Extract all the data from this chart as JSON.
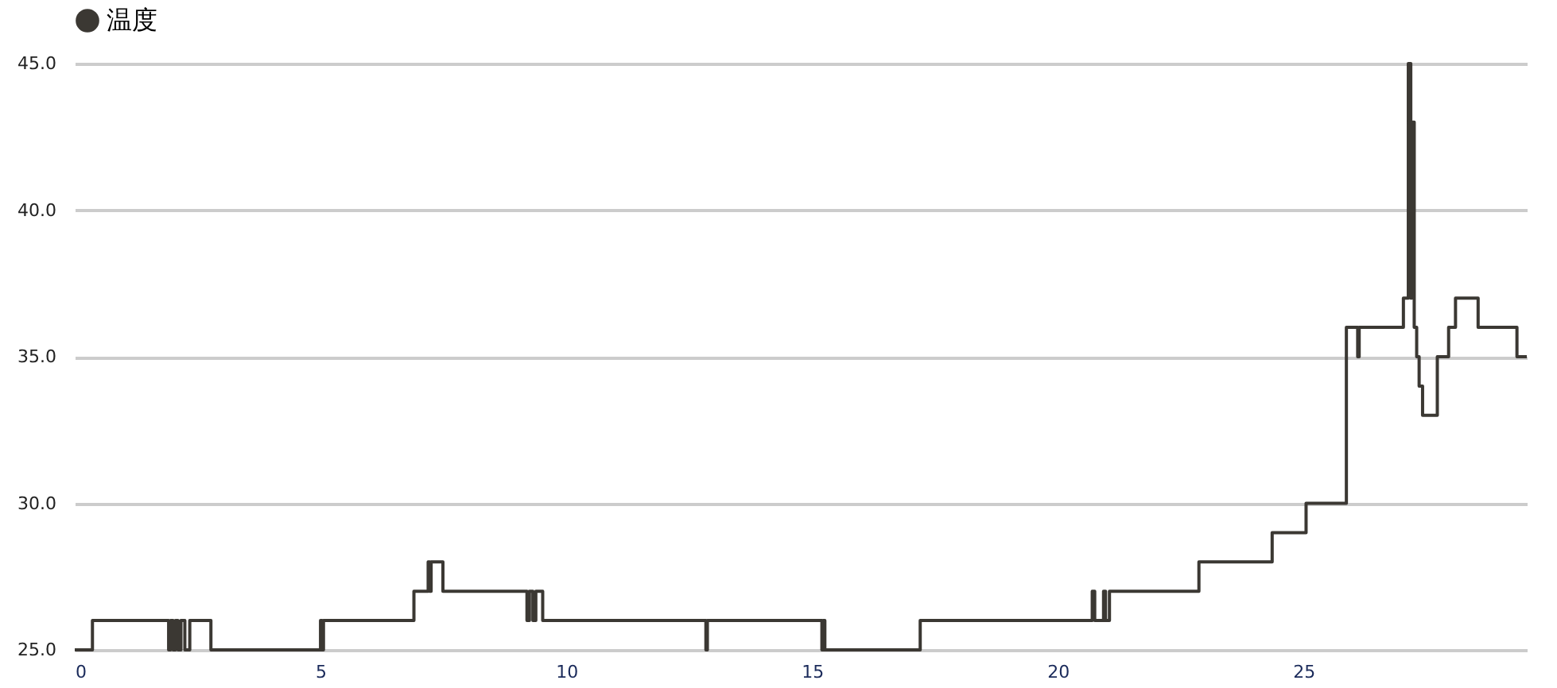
{
  "chart_data": {
    "type": "step",
    "legend": "top left",
    "grid": "y",
    "marker": "none",
    "line_style": "solid",
    "xlim": [
      0,
      29.54
    ],
    "xticks": [
      0,
      5,
      10,
      15,
      20,
      25
    ],
    "ylim": [
      25,
      45
    ],
    "yticks": [
      {
        "value": 25,
        "label": "25.0"
      },
      {
        "value": 30,
        "label": "30.0"
      },
      {
        "value": 35,
        "label": "35.0"
      },
      {
        "value": 40,
        "label": "40.0"
      },
      {
        "value": 45,
        "label": "45.0"
      }
    ],
    "series": [
      {
        "name": "温度",
        "color": "#3b3833",
        "x": [
          0,
          0.36,
          1.91,
          1.95,
          2.0,
          2.05,
          2.1,
          2.16,
          2.24,
          2.34,
          2.77,
          5.0,
          5.03,
          5.06,
          6.9,
          7.19,
          7.22,
          7.25,
          7.49,
          9.2,
          9.25,
          9.32,
          9.38,
          9.52,
          12.84,
          12.87,
          15.2,
          15.23,
          15.26,
          17.2,
          20.7,
          20.75,
          20.93,
          20.97,
          21.05,
          22.87,
          24.36,
          25.05,
          25.87,
          26.1,
          26.13,
          27.03,
          27.13,
          27.18,
          27.2,
          27.25,
          27.3,
          27.35,
          27.42,
          27.72,
          27.95,
          28.09,
          28.55,
          29.34,
          29.54
        ],
        "values": [
          25,
          26,
          25,
          26,
          25,
          26,
          25,
          26,
          25,
          26,
          25,
          26,
          25,
          26,
          27,
          28,
          27,
          28,
          27,
          26,
          27,
          26,
          27,
          26,
          25,
          26,
          25,
          26,
          25,
          26,
          27,
          26,
          27,
          26,
          27,
          28,
          29,
          30,
          36,
          35,
          36,
          37,
          45,
          37,
          43,
          36,
          35,
          34,
          33,
          35,
          36,
          37,
          36,
          35,
          35
        ]
      }
    ]
  }
}
